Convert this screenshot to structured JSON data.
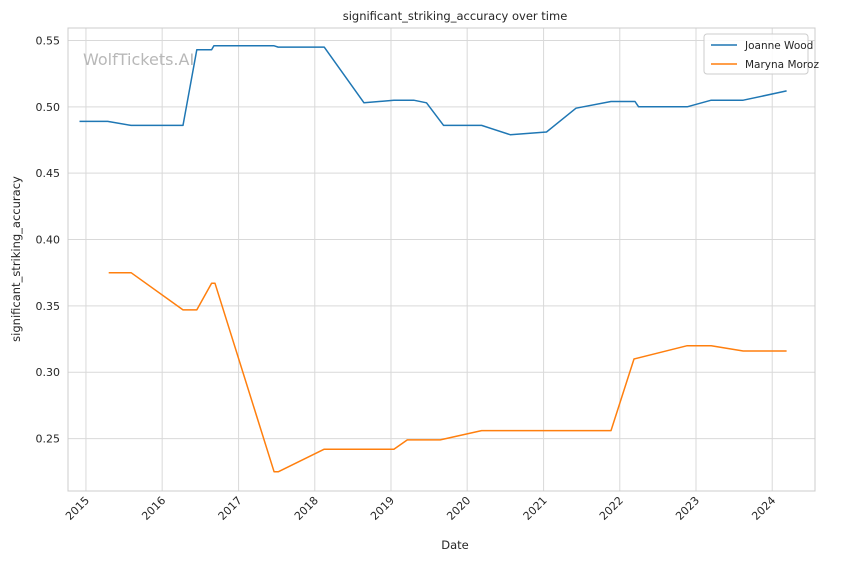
{
  "chart_data": {
    "type": "line",
    "title": "significant_striking_accuracy over time",
    "xlabel": "Date",
    "ylabel": "significant_striking_accuracy",
    "watermark": "WolfTickets.AI",
    "xlim": [
      "2014-10-07",
      "2024-07-24"
    ],
    "ylim": [
      0.2105,
      0.5594
    ],
    "xticks": [
      {
        "date": "2015-01-01",
        "label": "2015"
      },
      {
        "date": "2016-01-01",
        "label": "2016"
      },
      {
        "date": "2017-01-01",
        "label": "2017"
      },
      {
        "date": "2018-01-01",
        "label": "2018"
      },
      {
        "date": "2019-01-01",
        "label": "2019"
      },
      {
        "date": "2020-01-01",
        "label": "2020"
      },
      {
        "date": "2021-01-01",
        "label": "2021"
      },
      {
        "date": "2022-01-01",
        "label": "2022"
      },
      {
        "date": "2023-01-01",
        "label": "2023"
      },
      {
        "date": "2024-01-01",
        "label": "2024"
      }
    ],
    "yticks": [
      {
        "value": 0.25,
        "label": "0.25"
      },
      {
        "value": 0.3,
        "label": "0.30"
      },
      {
        "value": 0.35,
        "label": "0.35"
      },
      {
        "value": 0.4,
        "label": "0.40"
      },
      {
        "value": 0.45,
        "label": "0.45"
      },
      {
        "value": 0.5,
        "label": "0.50"
      },
      {
        "value": 0.55,
        "label": "0.55"
      }
    ],
    "grid": true,
    "legend_position": "top-right",
    "series": [
      {
        "name": "Joanne Wood",
        "color": "#1f77b4",
        "points": [
          [
            "2014-12-01",
            0.489
          ],
          [
            "2015-04-15",
            0.489
          ],
          [
            "2015-08-05",
            0.486
          ],
          [
            "2016-04-10",
            0.486
          ],
          [
            "2016-06-15",
            0.543
          ],
          [
            "2016-08-25",
            0.543
          ],
          [
            "2016-09-05",
            0.546
          ],
          [
            "2017-06-20",
            0.546
          ],
          [
            "2017-07-10",
            0.545
          ],
          [
            "2018-02-15",
            0.545
          ],
          [
            "2018-08-25",
            0.503
          ],
          [
            "2019-01-15",
            0.505
          ],
          [
            "2019-04-20",
            0.505
          ],
          [
            "2019-06-20",
            0.503
          ],
          [
            "2019-09-10",
            0.486
          ],
          [
            "2020-03-10",
            0.486
          ],
          [
            "2020-07-25",
            0.479
          ],
          [
            "2021-01-15",
            0.481
          ],
          [
            "2021-06-05",
            0.499
          ],
          [
            "2021-11-20",
            0.504
          ],
          [
            "2022-03-15",
            0.504
          ],
          [
            "2022-04-01",
            0.5
          ],
          [
            "2022-11-20",
            0.5
          ],
          [
            "2023-03-15",
            0.505
          ],
          [
            "2023-08-15",
            0.505
          ],
          [
            "2024-03-10",
            0.512
          ]
        ]
      },
      {
        "name": "Maryna Moroz",
        "color": "#ff7f0e",
        "points": [
          [
            "2015-04-20",
            0.375
          ],
          [
            "2015-08-05",
            0.375
          ],
          [
            "2016-04-10",
            0.347
          ],
          [
            "2016-06-15",
            0.347
          ],
          [
            "2016-08-25",
            0.367
          ],
          [
            "2016-09-10",
            0.367
          ],
          [
            "2017-06-20",
            0.225
          ],
          [
            "2017-07-10",
            0.225
          ],
          [
            "2018-02-15",
            0.242
          ],
          [
            "2019-01-15",
            0.242
          ],
          [
            "2019-03-20",
            0.249
          ],
          [
            "2019-08-25",
            0.249
          ],
          [
            "2020-03-10",
            0.256
          ],
          [
            "2021-11-20",
            0.256
          ],
          [
            "2022-03-10",
            0.31
          ],
          [
            "2022-11-20",
            0.32
          ],
          [
            "2023-03-15",
            0.32
          ],
          [
            "2023-08-15",
            0.316
          ],
          [
            "2024-03-10",
            0.316
          ]
        ]
      }
    ]
  }
}
